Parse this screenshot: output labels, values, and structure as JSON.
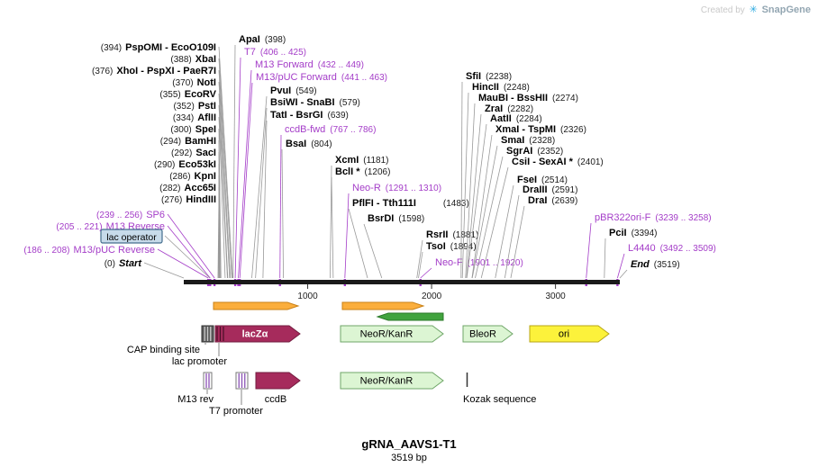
{
  "watermark": {
    "prefix": "Created by",
    "brand": "SnapGene"
  },
  "footer": {
    "name": "gRNA_AAVS1-T1",
    "size": "3519 bp"
  },
  "ruler": {
    "ticks": [
      "1000",
      "2000",
      "3000"
    ]
  },
  "colors": {
    "primer_purple": "#A43DC8",
    "enzyme_black": "#000000",
    "connector_gray": "#999999",
    "map_bar": "#1A1A1A",
    "orf_orange": "#FBAE3C",
    "orf_orange_stroke": "#C98117",
    "orf_green": "#41A33E",
    "orf_green_stroke": "#2C7A2A",
    "gene_maroon": "#A62B5C",
    "gene_maroon_stroke": "#731C3F",
    "cds_green_fill": "#DCF5D3",
    "cds_green_stroke": "#6FA668",
    "ori_yellow": "#FCF23B",
    "ori_yellow_stroke": "#B7A616",
    "lac_operator_fill": "#C7DBEA",
    "lac_operator_stroke": "#456E8E"
  },
  "left_labels": [
    {
      "pos": "(394)",
      "name": "PspOMI - EcoO109I",
      "type": "enzyme",
      "bp": 394
    },
    {
      "pos": "(388)",
      "name": "XbaI",
      "type": "enzyme",
      "bp": 388
    },
    {
      "pos": "(376)",
      "name": "XhoI - PspXI - PaeR7I",
      "type": "enzyme",
      "bp": 376
    },
    {
      "pos": "(370)",
      "name": "NotI",
      "type": "enzyme",
      "bp": 370
    },
    {
      "pos": "(355)",
      "name": "EcoRV",
      "type": "enzyme",
      "bp": 355
    },
    {
      "pos": "(352)",
      "name": "PstI",
      "type": "enzyme",
      "bp": 352
    },
    {
      "pos": "(334)",
      "name": "AflII",
      "type": "enzyme",
      "bp": 334
    },
    {
      "pos": "(300)",
      "name": "SpeI",
      "type": "enzyme",
      "bp": 300
    },
    {
      "pos": "(294)",
      "name": "BamHI",
      "type": "enzyme",
      "bp": 294
    },
    {
      "pos": "(292)",
      "name": "SacI",
      "type": "enzyme",
      "bp": 292
    },
    {
      "pos": "(290)",
      "name": "Eco53kI",
      "type": "enzyme",
      "bp": 290
    },
    {
      "pos": "(286)",
      "name": "KpnI",
      "type": "enzyme",
      "bp": 286
    },
    {
      "pos": "(282)",
      "name": "Acc65I",
      "type": "enzyme",
      "bp": 282
    },
    {
      "pos": "(276)",
      "name": "HindIII",
      "type": "enzyme",
      "bp": 276
    },
    {
      "pos": "(239 .. 256)",
      "name": "SP6",
      "type": "primer",
      "bp": 248
    },
    {
      "pos": "(205 .. 221)",
      "name": "M13 Reverse",
      "type": "primer",
      "bp": 213
    },
    {
      "name": "lac operator",
      "type": "feature-box",
      "bp": 210
    },
    {
      "pos": "(186 .. 208)",
      "name": "M13/pUC Reverse",
      "type": "primer",
      "bp": 197
    },
    {
      "pos": "(0)",
      "name": "Start",
      "type": "terminus",
      "bp": 0
    }
  ],
  "top_labels": [
    {
      "name": "ApaI",
      "pos": "(398)",
      "type": "enzyme",
      "bp": 398
    },
    {
      "name": "T7",
      "pos": "(406 .. 425)",
      "type": "primer",
      "bp": 415
    },
    {
      "name": "M13 Forward",
      "pos": "(432 .. 449)",
      "type": "primer",
      "bp": 440
    },
    {
      "name": "M13/pUC Forward",
      "pos": "(441 .. 463)",
      "type": "primer",
      "bp": 452
    },
    {
      "name": "PvuI",
      "pos": "(549)",
      "type": "enzyme",
      "bp": 549
    },
    {
      "name": "BsiWI - SnaBI",
      "pos": "(579)",
      "type": "enzyme",
      "bp": 579
    },
    {
      "name": "TatI - BsrGI",
      "pos": "(639)",
      "type": "enzyme",
      "bp": 639
    },
    {
      "name": "ccdB-fwd",
      "pos": "(767 .. 786)",
      "type": "primer",
      "bp": 776
    },
    {
      "name": "BsaI",
      "pos": "(804)",
      "type": "enzyme",
      "bp": 804
    },
    {
      "name": "XcmI",
      "pos": "(1181)",
      "type": "enzyme",
      "bp": 1181
    },
    {
      "name": "BclI *",
      "pos": "(1206)",
      "type": "enzyme",
      "bp": 1206
    },
    {
      "name": "Neo-R",
      "pos": "(1291 .. 1310)",
      "type": "primer",
      "bp": 1300
    },
    {
      "name": "PflFI - Tth111I",
      "pos": "(1483)",
      "type": "enzyme",
      "bp": 1483
    },
    {
      "name": "BsrDI",
      "pos": "(1598)",
      "type": "enzyme",
      "bp": 1598
    },
    {
      "name": "RsrII",
      "pos": "(1881)",
      "type": "enzyme",
      "bp": 1881
    },
    {
      "name": "TsoI",
      "pos": "(1894)",
      "type": "enzyme",
      "bp": 1894
    },
    {
      "name": "Neo-F",
      "pos": "(1901 .. 1920)",
      "type": "primer",
      "bp": 1910
    }
  ],
  "right_labels": [
    {
      "name": "SfiI",
      "pos": "(2238)",
      "type": "enzyme",
      "bp": 2238
    },
    {
      "name": "HincII",
      "pos": "(2248)",
      "type": "enzyme",
      "bp": 2248
    },
    {
      "name": "MauBI - BssHII",
      "pos": "(2274)",
      "type": "enzyme",
      "bp": 2274
    },
    {
      "name": "ZraI",
      "pos": "(2282)",
      "type": "enzyme",
      "bp": 2282
    },
    {
      "name": "AatII",
      "pos": "(2284)",
      "type": "enzyme",
      "bp": 2284
    },
    {
      "name": "XmaI - TspMI",
      "pos": "(2326)",
      "type": "enzyme",
      "bp": 2326
    },
    {
      "name": "SmaI",
      "pos": "(2328)",
      "type": "enzyme",
      "bp": 2328
    },
    {
      "name": "SgrAI",
      "pos": "(2352)",
      "type": "enzyme",
      "bp": 2352
    },
    {
      "name": "CsiI - SexAI *",
      "pos": "(2401)",
      "type": "enzyme",
      "bp": 2401
    },
    {
      "name": "FseI",
      "pos": "(2514)",
      "type": "enzyme",
      "bp": 2514
    },
    {
      "name": "DraIII",
      "pos": "(2591)",
      "type": "enzyme",
      "bp": 2591
    },
    {
      "name": "DraI",
      "pos": "(2639)",
      "type": "enzyme",
      "bp": 2639
    },
    {
      "name": "pBR322ori-F",
      "pos": "(3239 .. 3258)",
      "type": "primer",
      "bp": 3248
    },
    {
      "name": "PciI",
      "pos": "(3394)",
      "type": "enzyme",
      "bp": 3394
    },
    {
      "name": "L4440",
      "pos": "(3492 .. 3509)",
      "type": "primer",
      "bp": 3500
    },
    {
      "name": "End",
      "pos": "(3519)",
      "type": "terminus",
      "bp": 3519
    }
  ],
  "tracks": {
    "row1": [
      {
        "label": "CAP binding site",
        "kind": "site-box"
      },
      {
        "label": "lacZα",
        "kind": "gene-maroon"
      },
      {
        "label": "NeoR/KanR",
        "kind": "cds-green"
      },
      {
        "label": "BleoR",
        "kind": "cds-green"
      },
      {
        "label": "ori",
        "kind": "ori-yellow"
      }
    ],
    "row2": [
      {
        "label": "M13 rev",
        "kind": "site-box"
      },
      {
        "label": "T7 promoter",
        "kind": "promoter-box"
      },
      {
        "label": "ccdB",
        "kind": "gene-maroon"
      },
      {
        "label": "NeoR/KanR",
        "kind": "cds-green"
      },
      {
        "label": "Kozak sequence",
        "kind": "tick"
      }
    ]
  },
  "callouts": {
    "lac_promoter": "lac promoter"
  }
}
